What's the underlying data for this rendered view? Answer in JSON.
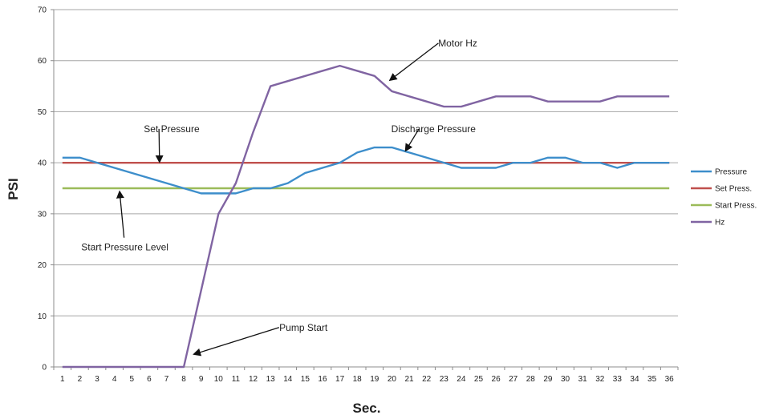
{
  "chart_data": {
    "type": "line",
    "title": "",
    "xlabel": "Sec.",
    "ylabel": "PSI",
    "ylim": [
      0,
      70
    ],
    "y_ticks": [
      0,
      10,
      20,
      30,
      40,
      50,
      60,
      70
    ],
    "x": [
      1,
      2,
      3,
      4,
      5,
      6,
      7,
      8,
      9,
      10,
      11,
      12,
      13,
      14,
      15,
      16,
      17,
      18,
      19,
      20,
      21,
      22,
      23,
      24,
      25,
      26,
      27,
      28,
      29,
      30,
      31,
      32,
      33,
      34,
      35,
      36
    ],
    "grid": "horizontal",
    "legend_position": "right",
    "series": [
      {
        "name": "Pressure",
        "color": "#3d8ecb",
        "values": [
          41,
          41,
          40,
          39,
          38,
          37,
          36,
          35,
          34,
          34,
          34,
          35,
          35,
          36,
          38,
          39,
          40,
          42,
          43,
          43,
          42,
          41,
          40,
          39,
          39,
          39,
          40,
          40,
          41,
          41,
          40,
          40,
          39,
          40,
          40,
          40
        ]
      },
      {
        "name": "Set Press.",
        "color": "#c0504d",
        "values": [
          40,
          40,
          40,
          40,
          40,
          40,
          40,
          40,
          40,
          40,
          40,
          40,
          40,
          40,
          40,
          40,
          40,
          40,
          40,
          40,
          40,
          40,
          40,
          40,
          40,
          40,
          40,
          40,
          40,
          40,
          40,
          40,
          40,
          40,
          40,
          40
        ]
      },
      {
        "name": "Start Press.",
        "color": "#9bbb59",
        "values": [
          35,
          35,
          35,
          35,
          35,
          35,
          35,
          35,
          35,
          35,
          35,
          35,
          35,
          35,
          35,
          35,
          35,
          35,
          35,
          35,
          35,
          35,
          35,
          35,
          35,
          35,
          35,
          35,
          35,
          35,
          35,
          35,
          35,
          35,
          35,
          35
        ]
      },
      {
        "name": "Hz",
        "color": "#8064a2",
        "values": [
          0,
          0,
          0,
          0,
          0,
          0,
          0,
          0,
          15,
          30,
          36,
          46,
          55,
          56,
          57,
          58,
          59,
          58,
          57,
          54,
          53,
          52,
          51,
          51,
          52,
          53,
          53,
          53,
          52,
          52,
          52,
          52,
          53,
          53,
          53,
          53
        ]
      }
    ],
    "annotations": [
      {
        "text": "Motor  Hz",
        "text_at": [
          23.8,
          62.8
        ],
        "arrow_to": [
          19.9,
          56.2
        ]
      },
      {
        "text": "Set Pressure",
        "text_at": [
          7.3,
          46.0
        ],
        "arrow_to": [
          6.6,
          40.2
        ]
      },
      {
        "text": "Discharge Pressure",
        "text_at": [
          22.4,
          46.0
        ],
        "arrow_to": [
          20.8,
          42.4
        ]
      },
      {
        "text": "Start Pressure Level",
        "text_at": [
          4.6,
          22.8
        ],
        "arrow_to": [
          4.3,
          34.3
        ]
      },
      {
        "text": "Pump Start",
        "text_at": [
          14.9,
          7.1
        ],
        "arrow_to": [
          8.6,
          2.5
        ]
      }
    ]
  }
}
